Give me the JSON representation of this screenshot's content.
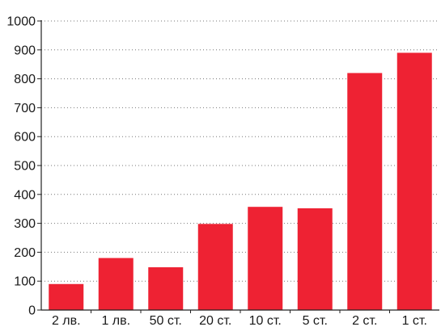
{
  "chart_data": {
    "type": "bar",
    "categories": [
      "2 лв.",
      "1 лв.",
      "50 ст.",
      "20 ст.",
      "10 ст.",
      "5 ст.",
      "2 ст.",
      "1 ст."
    ],
    "values": [
      90,
      180,
      148,
      298,
      357,
      352,
      820,
      890
    ],
    "ylim": [
      0,
      1000
    ],
    "yticks": [
      0,
      100,
      200,
      300,
      400,
      500,
      600,
      700,
      800,
      900,
      1000
    ],
    "grid": true,
    "bar_color": "#ee2233",
    "grid_color": "#777777",
    "axis_color": "#222222"
  }
}
